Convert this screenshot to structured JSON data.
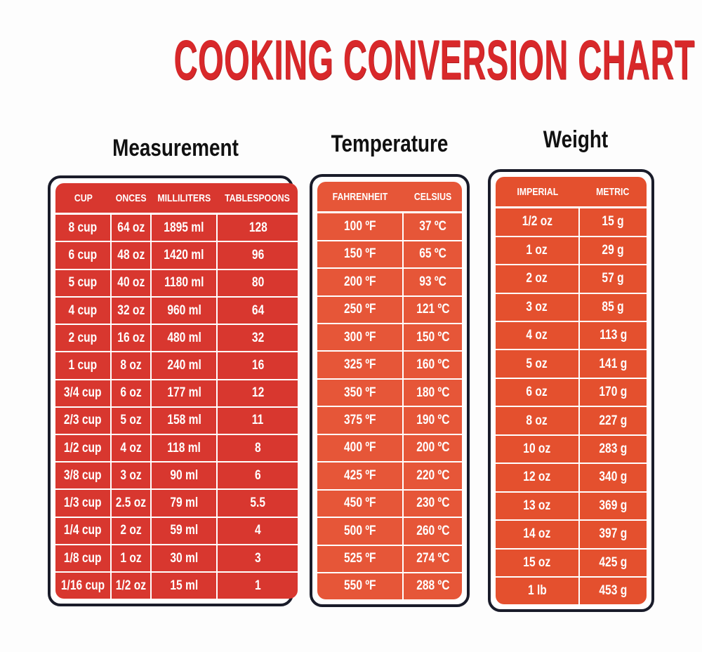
{
  "title": "COOKING CONVERSION CHART",
  "colors": {
    "title": "#d8282a",
    "measurement": "#d8372f",
    "temperature": "#e65638",
    "weight": "#e4502e",
    "border": "#1a1c2a"
  },
  "measurement": {
    "heading": "Measurement",
    "columns": [
      "CUP",
      "ONCES",
      "MILLILITERS",
      "TABLESPOONS"
    ],
    "rows": [
      [
        "8 cup",
        "64 oz",
        "1895 ml",
        "128"
      ],
      [
        "6 cup",
        "48 oz",
        "1420 ml",
        "96"
      ],
      [
        "5 cup",
        "40 oz",
        "1180 ml",
        "80"
      ],
      [
        "4 cup",
        "32 oz",
        "960 ml",
        "64"
      ],
      [
        "2 cup",
        "16 oz",
        "480 ml",
        "32"
      ],
      [
        "1 cup",
        "8 oz",
        "240 ml",
        "16"
      ],
      [
        "3/4 cup",
        "6 oz",
        "177 ml",
        "12"
      ],
      [
        "2/3 cup",
        "5 oz",
        "158 ml",
        "11"
      ],
      [
        "1/2 cup",
        "4 oz",
        "118 ml",
        "8"
      ],
      [
        "3/8 cup",
        "3 oz",
        "90 ml",
        "6"
      ],
      [
        "1/3 cup",
        "2.5 oz",
        "79 ml",
        "5.5"
      ],
      [
        "1/4 cup",
        "2 oz",
        "59 ml",
        "4"
      ],
      [
        "1/8 cup",
        "1 oz",
        "30 ml",
        "3"
      ],
      [
        "1/16 cup",
        "1/2 oz",
        "15 ml",
        "1"
      ]
    ]
  },
  "temperature": {
    "heading": "Temperature",
    "columns": [
      "FAHRENHEIT",
      "CELSIUS"
    ],
    "rows": [
      [
        "100 ºF",
        "37 ºC"
      ],
      [
        "150 ºF",
        "65 ºC"
      ],
      [
        "200 ºF",
        "93 ºC"
      ],
      [
        "250 ºF",
        "121 ºC"
      ],
      [
        "300 ºF",
        "150 ºC"
      ],
      [
        "325 ºF",
        "160 ºC"
      ],
      [
        "350 ºF",
        "180 ºC"
      ],
      [
        "375 ºF",
        "190 ºC"
      ],
      [
        "400 ºF",
        "200 ºC"
      ],
      [
        "425 ºF",
        "220 ºC"
      ],
      [
        "450 ºF",
        "230 ºC"
      ],
      [
        "500 ºF",
        "260 ºC"
      ],
      [
        "525 ºF",
        "274 ºC"
      ],
      [
        "550 ºF",
        "288 ºC"
      ]
    ]
  },
  "weight": {
    "heading": "Weight",
    "columns": [
      "IMPERIAL",
      "METRIC"
    ],
    "rows": [
      [
        "1/2 oz",
        "15 g"
      ],
      [
        "1 oz",
        "29 g"
      ],
      [
        "2 oz",
        "57 g"
      ],
      [
        "3 oz",
        "85 g"
      ],
      [
        "4 oz",
        "113 g"
      ],
      [
        "5 oz",
        "141 g"
      ],
      [
        "6 oz",
        "170 g"
      ],
      [
        "8 oz",
        "227 g"
      ],
      [
        "10 oz",
        "283 g"
      ],
      [
        "12 oz",
        "340 g"
      ],
      [
        "13 oz",
        "369 g"
      ],
      [
        "14 oz",
        "397 g"
      ],
      [
        "15 oz",
        "425 g"
      ],
      [
        "1 lb",
        "453 g"
      ]
    ]
  }
}
